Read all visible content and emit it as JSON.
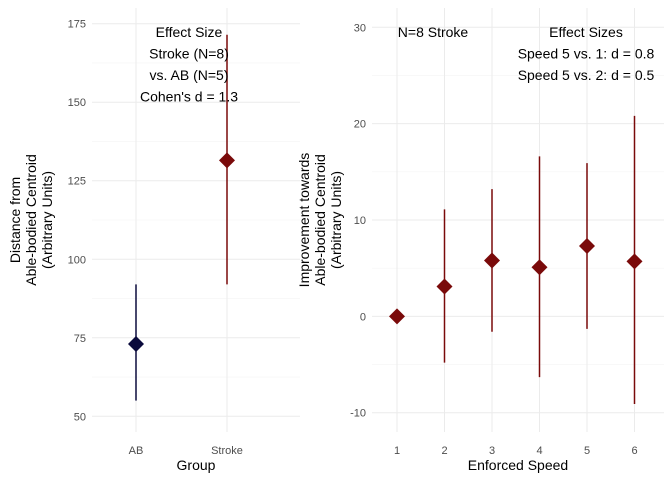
{
  "chart_data": [
    {
      "type": "scatter",
      "panel": "left",
      "categories": [
        "AB",
        "Stroke"
      ],
      "points": [
        {
          "category": "AB",
          "value": 73,
          "low": 55,
          "high": 92,
          "color": "#0a0a3c"
        },
        {
          "category": "Stroke",
          "value": 131.5,
          "low": 92,
          "high": 171.5,
          "color": "#7a0a0a"
        }
      ],
      "xlabel": "Group",
      "ylabel_lines": [
        "Distance from",
        "Able-bodied Centroid",
        "(Arbitrary Units)"
      ],
      "yticks": [
        50,
        75,
        100,
        125,
        150,
        175
      ],
      "ylim": [
        45,
        180
      ],
      "grid": true,
      "annotation_lines": [
        "Effect Size",
        "Stroke (N=8)",
        "vs. AB (N=5)",
        "Cohen's d = 1.3"
      ]
    },
    {
      "type": "scatter",
      "panel": "right",
      "categories": [
        "1",
        "2",
        "3",
        "4",
        "5",
        "6"
      ],
      "points": [
        {
          "category": "1",
          "value": 0,
          "low": 0,
          "high": 0
        },
        {
          "category": "2",
          "value": 3.1,
          "low": -4.8,
          "high": 11.1
        },
        {
          "category": "3",
          "value": 5.8,
          "low": -1.6,
          "high": 13.2
        },
        {
          "category": "4",
          "value": 5.1,
          "low": -6.3,
          "high": 16.6
        },
        {
          "category": "5",
          "value": 7.3,
          "low": -1.3,
          "high": 15.9
        },
        {
          "category": "6",
          "value": 5.7,
          "low": -9.1,
          "high": 20.8
        }
      ],
      "color": "#7a0a0a",
      "xlabel": "Enforced Speed",
      "ylabel_lines": [
        "Improvement towards",
        "Able-bodied Centroid",
        "(Arbitrary Units)"
      ],
      "yticks": [
        -10,
        0,
        10,
        20,
        30
      ],
      "ylim": [
        -12,
        32
      ],
      "grid": true,
      "annotation_left": "N=8 Stroke",
      "annotation_lines": [
        "Effect Sizes",
        "Speed 5 vs. 1: d = 0.8",
        "Speed 5 vs. 2: d = 0.5"
      ]
    }
  ]
}
